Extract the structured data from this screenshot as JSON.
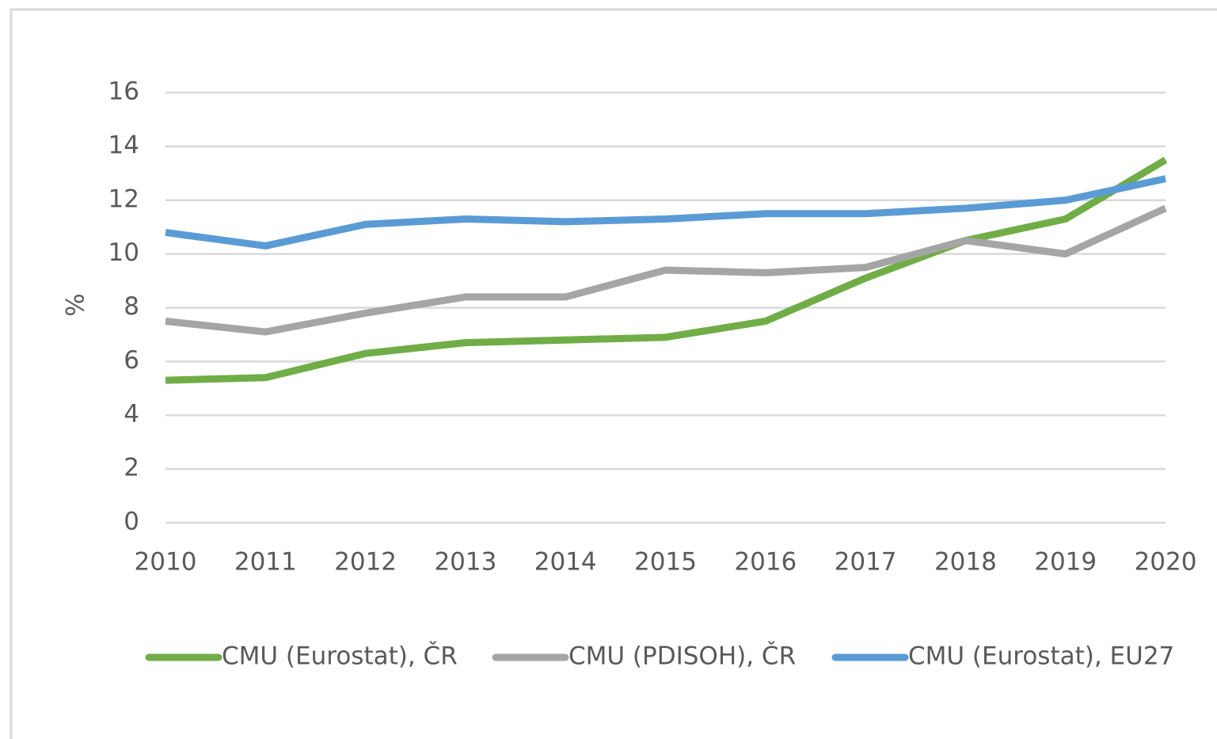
{
  "chart_data": {
    "type": "line",
    "y_label": "%",
    "x": [
      2010,
      2011,
      2012,
      2013,
      2014,
      2015,
      2016,
      2017,
      2018,
      2019,
      2020
    ],
    "xlim": [
      2010,
      2020
    ],
    "xticks": [
      2010,
      2011,
      2012,
      2013,
      2014,
      2015,
      2016,
      2017,
      2018,
      2019,
      2020
    ],
    "ylim": [
      0,
      16
    ],
    "yticks": [
      0,
      2,
      4,
      6,
      8,
      10,
      12,
      14,
      16
    ],
    "grid": true,
    "legend": "bottom",
    "series": [
      {
        "name": "CMU (Eurostat), ČR",
        "color": "#70ad47",
        "values": [
          5.3,
          5.4,
          6.3,
          6.7,
          6.8,
          6.9,
          7.5,
          9.1,
          10.5,
          11.3,
          13.5
        ]
      },
      {
        "name": "CMU (PDISOH), ČR",
        "color": "#a5a5a5",
        "values": [
          7.5,
          7.1,
          7.8,
          8.4,
          8.4,
          9.4,
          9.3,
          9.5,
          10.5,
          10.0,
          11.7
        ]
      },
      {
        "name": "CMU (Eurostat), EU27",
        "color": "#5b9bd5",
        "values": [
          10.8,
          10.3,
          11.1,
          11.3,
          11.2,
          11.3,
          11.5,
          11.5,
          11.7,
          12.0,
          12.8
        ]
      }
    ]
  }
}
